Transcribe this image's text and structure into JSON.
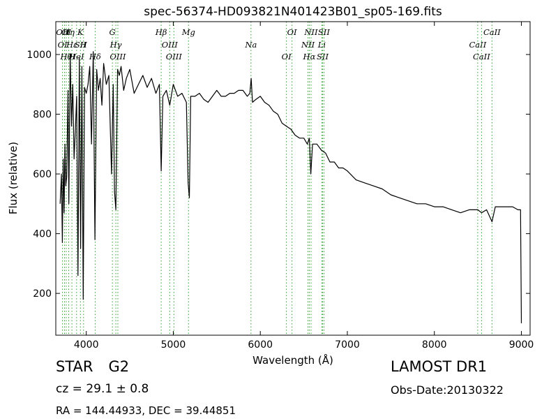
{
  "chart_data": {
    "type": "line",
    "title": "spec-56374-HD093821N401423B01_sp05-169.fits",
    "xlabel": "Wavelength (Å)",
    "ylabel": "Flux (relative)",
    "xlim": [
      3650,
      9100
    ],
    "ylim": [
      60,
      1110
    ],
    "xticks": [
      4000,
      5000,
      6000,
      7000,
      8000,
      9000
    ],
    "yticks": [
      200,
      400,
      600,
      800,
      1000
    ],
    "grid": false,
    "legend": "none",
    "line_color": "#000000",
    "marker_color": "#2ca02c",
    "series": [
      {
        "x": [
          3700,
          3715,
          3725,
          3735,
          3745,
          3755,
          3765,
          3775,
          3790,
          3800,
          3815,
          3830,
          3845,
          3860,
          3875,
          3890,
          3905,
          3920,
          3935,
          3950,
          3965,
          3980,
          4000,
          4020,
          4040,
          4060,
          4080,
          4100,
          4120,
          4140,
          4160,
          4180,
          4200,
          4230,
          4260,
          4290,
          4310,
          4325,
          4340,
          4360,
          4380,
          4400,
          4430,
          4460,
          4500,
          4550,
          4600,
          4650,
          4700,
          4750,
          4800,
          4840,
          4861,
          4880,
          4920,
          4960,
          5000,
          5050,
          5100,
          5150,
          5170,
          5185,
          5200,
          5250,
          5300,
          5350,
          5400,
          5450,
          5500,
          5550,
          5600,
          5650,
          5700,
          5750,
          5800,
          5850,
          5880,
          5895,
          5910,
          5950,
          6000,
          6050,
          6100,
          6150,
          6200,
          6250,
          6300,
          6350,
          6400,
          6450,
          6500,
          6540,
          6563,
          6580,
          6600,
          6650,
          6700,
          6750,
          6800,
          6850,
          6900,
          6950,
          7000,
          7100,
          7200,
          7300,
          7400,
          7500,
          7600,
          7700,
          7800,
          7900,
          8000,
          8100,
          8200,
          8300,
          8400,
          8500,
          8542,
          8600,
          8662,
          8700,
          8800,
          8900,
          8960,
          8990,
          9000
        ],
        "y": [
          500,
          600,
          370,
          650,
          470,
          700,
          560,
          590,
          880,
          500,
          1000,
          760,
          900,
          650,
          750,
          860,
          260,
          990,
          350,
          960,
          180,
          890,
          870,
          900,
          960,
          700,
          1010,
          380,
          950,
          880,
          920,
          830,
          970,
          900,
          930,
          600,
          900,
          540,
          480,
          950,
          930,
          960,
          880,
          920,
          950,
          870,
          900,
          930,
          890,
          920,
          870,
          900,
          610,
          860,
          880,
          830,
          900,
          860,
          870,
          840,
          570,
          520,
          860,
          860,
          870,
          850,
          840,
          860,
          880,
          860,
          860,
          870,
          870,
          880,
          880,
          860,
          870,
          920,
          840,
          850,
          860,
          840,
          830,
          810,
          800,
          770,
          760,
          750,
          730,
          720,
          720,
          700,
          720,
          600,
          700,
          700,
          680,
          670,
          640,
          640,
          620,
          620,
          610,
          580,
          570,
          560,
          550,
          530,
          520,
          510,
          500,
          500,
          490,
          490,
          480,
          470,
          480,
          480,
          470,
          480,
          440,
          490,
          490,
          490,
          480,
          480,
          100
        ]
      }
    ],
    "line_markers": [
      {
        "x": 3727,
        "labels": [
          "OII",
          "OI"
        ]
      },
      {
        "x": 3750,
        "labels": [],
        "dotted_only": true
      },
      {
        "x": 3770,
        "labels": [
          "Hθ",
          "OI"
        ]
      },
      {
        "x": 3798,
        "labels": [
          "Hη"
        ]
      },
      {
        "x": 3835,
        "labels": [
          "Hε",
          "H"
        ]
      },
      {
        "x": 3889,
        "labels": [
          "HeI"
        ]
      },
      {
        "x": 3933,
        "labels": [
          "K",
          "SII"
        ]
      },
      {
        "x": 3969,
        "labels": [
          "H"
        ]
      },
      {
        "x": 4102,
        "labels": [
          "Hδ"
        ]
      },
      {
        "x": 4300,
        "labels": [
          "G"
        ]
      },
      {
        "x": 4340,
        "labels": [
          "Hγ"
        ]
      },
      {
        "x": 4363,
        "labels": [
          "OIII"
        ]
      },
      {
        "x": 4861,
        "labels": [
          "Hβ"
        ]
      },
      {
        "x": 4959,
        "labels": [
          "OIII"
        ]
      },
      {
        "x": 5007,
        "labels": [
          "OIII"
        ]
      },
      {
        "x": 5175,
        "labels": [
          "Mg"
        ]
      },
      {
        "x": 5893,
        "labels": [
          "Na"
        ]
      },
      {
        "x": 6300,
        "labels": [
          "OI"
        ]
      },
      {
        "x": 6364,
        "labels": [
          "OI"
        ]
      },
      {
        "x": 6548,
        "labels": [
          "NII"
        ]
      },
      {
        "x": 6563,
        "labels": [
          "Hα"
        ]
      },
      {
        "x": 6583,
        "labels": [
          "NII"
        ]
      },
      {
        "x": 6707,
        "labels": [
          "Li"
        ]
      },
      {
        "x": 6716,
        "labels": [
          "SII"
        ]
      },
      {
        "x": 6731,
        "labels": [
          "SII"
        ]
      },
      {
        "x": 8498,
        "labels": [
          "CaII"
        ]
      },
      {
        "x": 8542,
        "labels": [
          "CaII"
        ]
      },
      {
        "x": 8662,
        "labels": [
          "CaII"
        ]
      }
    ]
  },
  "info": {
    "object_class": "STAR",
    "subclass": "G2",
    "cz": "cz = 29.1 ± 0.8",
    "radec": "RA = 144.44933, DEC = 39.44851",
    "survey": "LAMOST DR1",
    "obs_date": "Obs-Date:20130322"
  }
}
